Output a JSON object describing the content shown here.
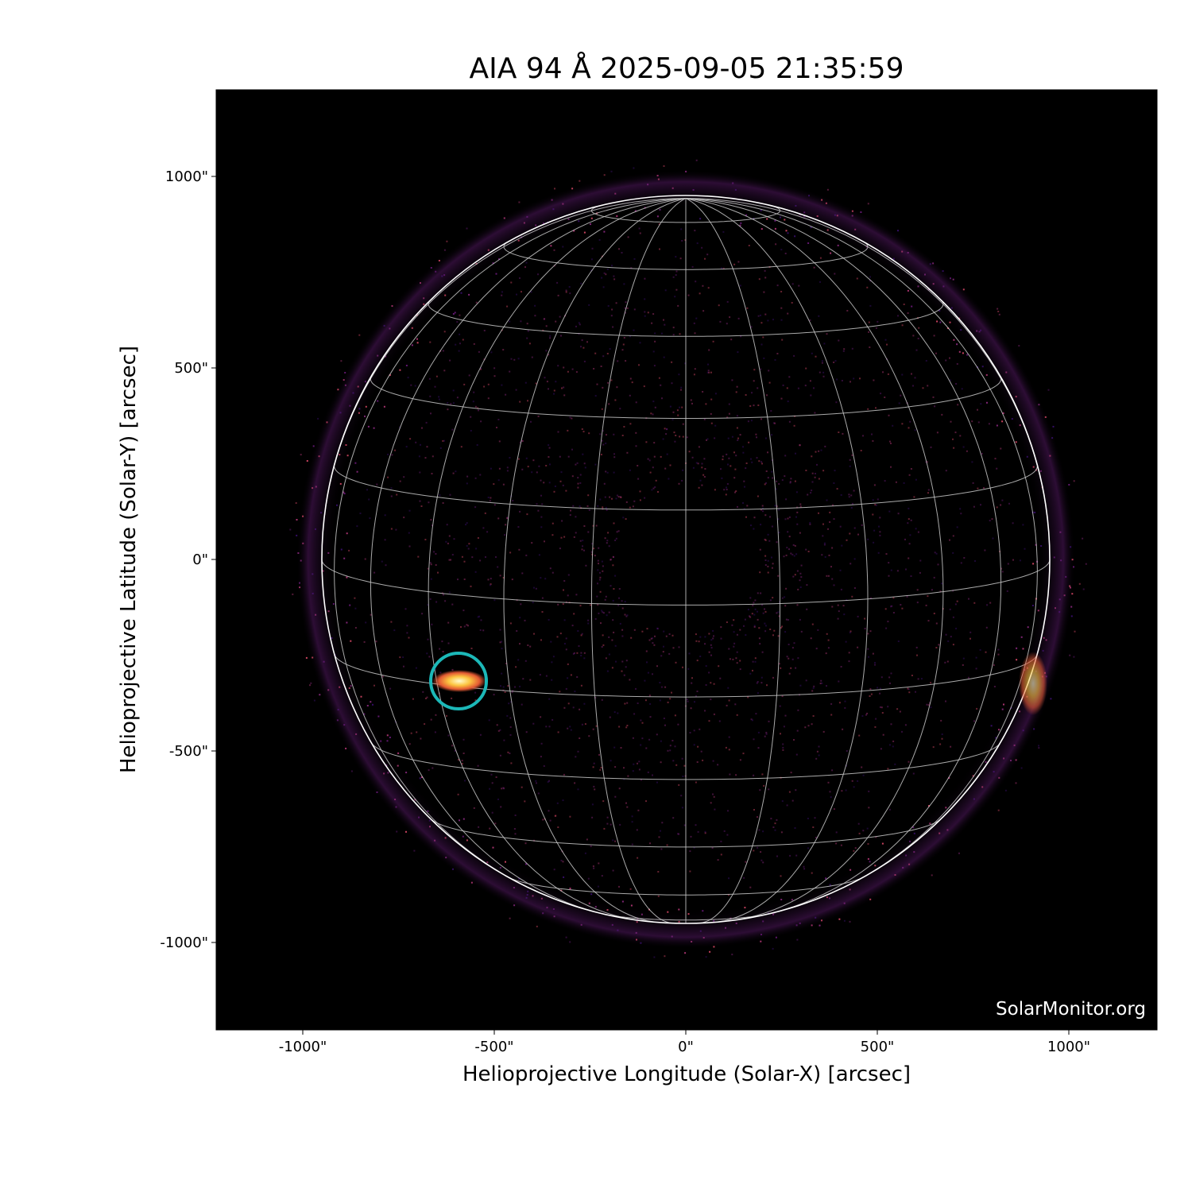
{
  "title": "AIA 94 Å 2025-09-05 21:35:59",
  "instrument": "AIA",
  "wavelength": "94 Å",
  "timestamp": "2025-09-05 21:35:59",
  "x_axis": {
    "label": "Helioprojective Longitude (Solar-X) [arcsec]",
    "ticks": [
      "-1000\"",
      "-500\"",
      "0\"",
      "500\"",
      "1000\""
    ],
    "tick_values": [
      -1000,
      -500,
      0,
      500,
      1000
    ]
  },
  "y_axis": {
    "label": "Helioprojective Latitude (Solar-Y) [arcsec]",
    "ticks": [
      "1000\"",
      "500\"",
      "0\"",
      "-500\"",
      "-1000\""
    ],
    "tick_values": [
      1000,
      500,
      0,
      -500,
      -1000
    ]
  },
  "watermark": "SolarMonitor.org",
  "colormap": "inferno-like (black–purple–orange–yellow)",
  "grid": "heliographic, 15° spacing",
  "highlight": {
    "solar_x": -595,
    "solar_y": -318,
    "color": "#1cb8b8"
  },
  "colors": {
    "background": "#000000",
    "limb": "#ffffff",
    "grid": "#bbbbbb"
  }
}
